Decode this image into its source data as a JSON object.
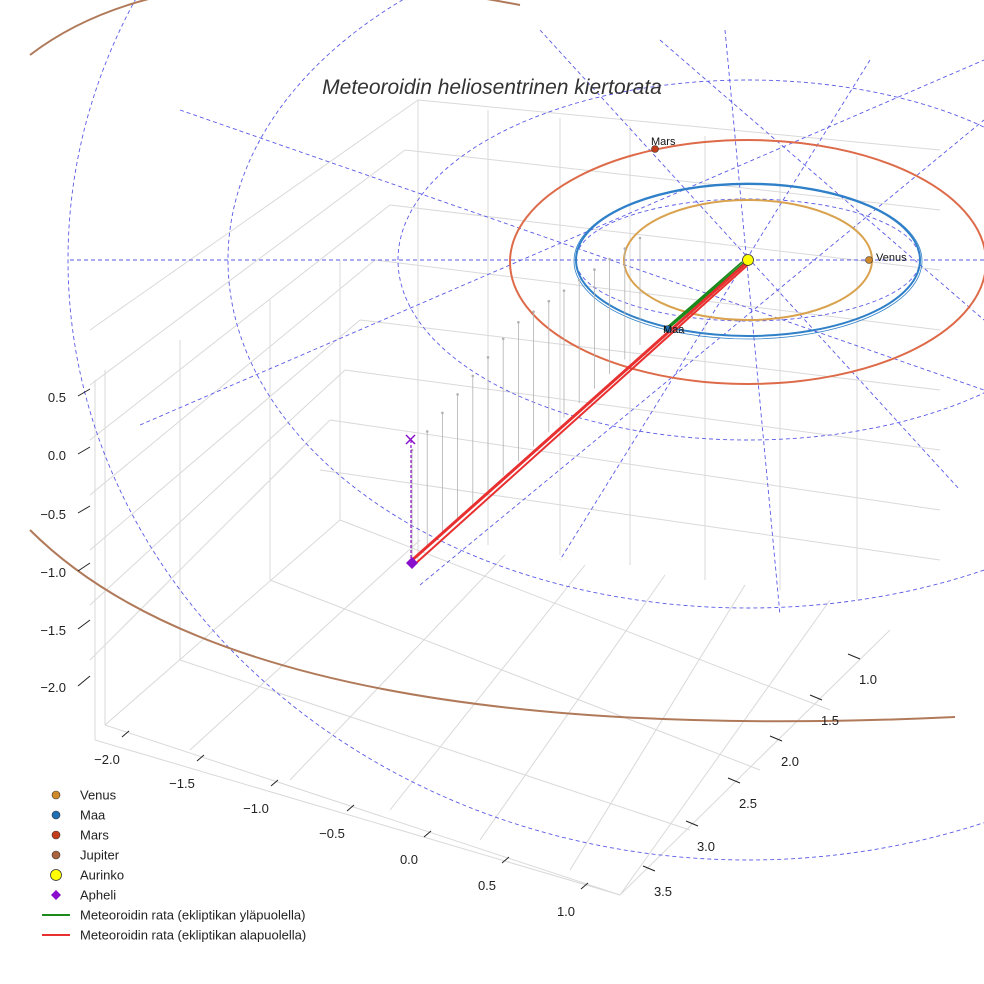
{
  "chart_data": {
    "type": "3d-line",
    "title": "Meteoroidin heliosentrinen kiertorata",
    "axes": {
      "x": {
        "ticks": [
          "−2.0",
          "−1.5",
          "−1.0",
          "−0.5",
          "0.0",
          "0.5",
          "1.0"
        ],
        "range": [
          -2.2,
          1.2
        ]
      },
      "y": {
        "ticks": [
          "1.0",
          "1.5",
          "2.0",
          "2.5",
          "3.0",
          "3.5"
        ],
        "range": [
          0.8,
          3.8
        ]
      },
      "z": {
        "ticks": [
          "0.5",
          "0.0",
          "−0.5",
          "−1.0",
          "−1.5",
          "−2.0"
        ],
        "range": [
          -2.4,
          0.8
        ]
      }
    },
    "planets": [
      {
        "name": "Venus",
        "label": "Venus",
        "color": "#d08a2c",
        "orbit_color": "#d9a24e",
        "semi_major_au": 0.72
      },
      {
        "name": "Maa",
        "label": "Maa",
        "color": "#1f6fb4",
        "orbit_color": "#2f80c8",
        "semi_major_au": 1.0
      },
      {
        "name": "Mars",
        "label": "Mars",
        "color": "#c43d1a",
        "orbit_color": "#dd6a48",
        "semi_major_au": 1.52
      },
      {
        "name": "Jupiter",
        "label": "Jupiter",
        "color": "#a8623e",
        "orbit_color": "#b07a5a",
        "semi_major_au": 5.2
      }
    ],
    "sun": {
      "name": "Aurinko",
      "color": "#ffff00"
    },
    "aphelion": {
      "name": "Apheli",
      "color": "#8a0fcc"
    },
    "series": [
      {
        "name": "Meteoroidin rata (ekliptikan yläpuolella)",
        "color": "#1a8a1a"
      },
      {
        "name": "Meteoroidin rata (ekliptikan alapuolella)",
        "color": "#e83030"
      }
    ],
    "legend": [
      {
        "label": "Venus",
        "marker": "circle",
        "color": "#d08a2c"
      },
      {
        "label": "Maa",
        "marker": "circle",
        "color": "#1f6fb4"
      },
      {
        "label": "Mars",
        "marker": "circle",
        "color": "#c43d1a"
      },
      {
        "label": "Jupiter",
        "marker": "circle",
        "color": "#a8623e"
      },
      {
        "label": "Aurinko",
        "marker": "circle-large",
        "color": "#ffff00"
      },
      {
        "label": "Apheli",
        "marker": "diamond",
        "color": "#8a0fcc"
      },
      {
        "label": "Meteoroidin rata (ekliptikan yläpuolella)",
        "marker": "line",
        "color": "#1a8a1a"
      },
      {
        "label": "Meteoroidin rata (ekliptikan alapuolella)",
        "marker": "line",
        "color": "#e83030"
      }
    ]
  }
}
